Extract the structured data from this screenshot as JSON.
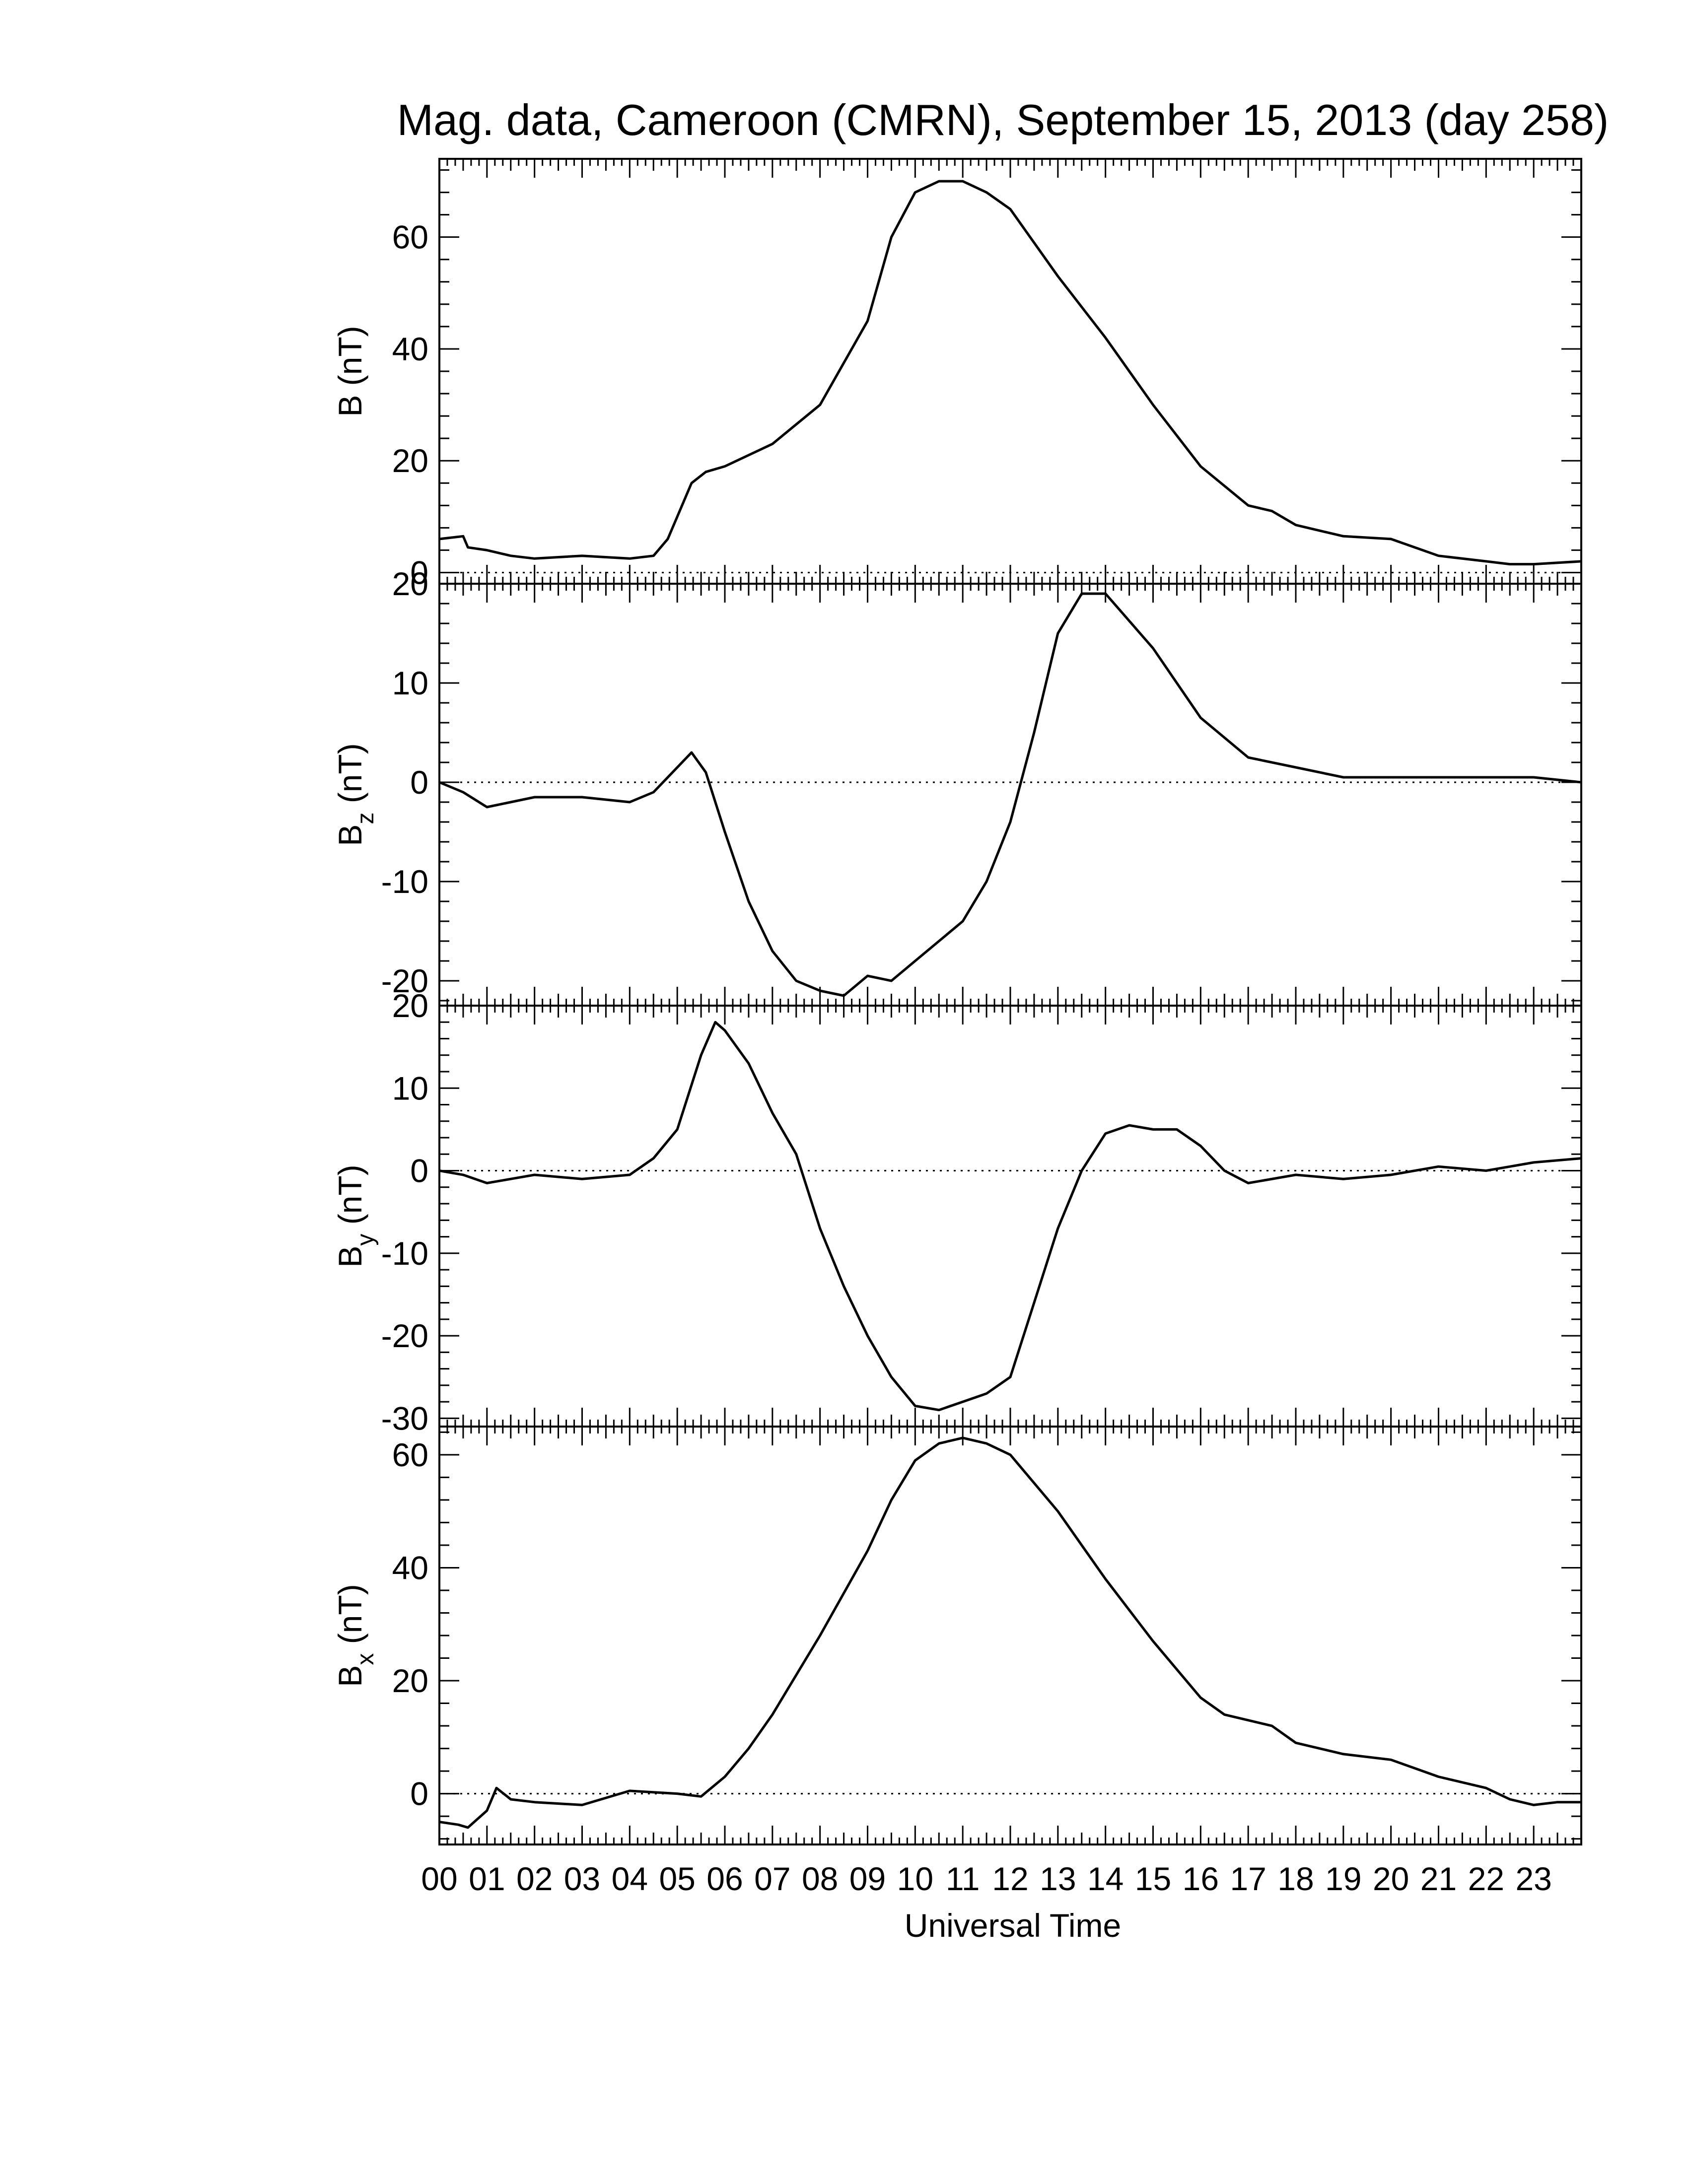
{
  "title": "Mag. data, Cameroon (CMRN), September 15, 2013 (day 258)",
  "x_axis": {
    "label": "Universal Time",
    "range": [
      0,
      24
    ],
    "tick_labels": [
      "00",
      "01",
      "02",
      "03",
      "04",
      "05",
      "06",
      "07",
      "08",
      "09",
      "10",
      "11",
      "12",
      "13",
      "14",
      "15",
      "16",
      "17",
      "18",
      "19",
      "20",
      "21",
      "22",
      "23"
    ]
  },
  "colors": {
    "line": "#000000",
    "axes": "#000000",
    "zero_line": "#000000"
  },
  "chart_data": [
    {
      "type": "line",
      "panel": "B",
      "ylabel": "B (nT)",
      "ylabel_main": "B (nT)",
      "ylabel_sub": "",
      "ylim": [
        -2,
        74
      ],
      "yticks": [
        0,
        20,
        40,
        60
      ],
      "zero_line": true,
      "x": [
        0,
        0.5,
        0.6,
        1.0,
        1.5,
        2,
        3,
        4,
        4.5,
        4.8,
        5,
        5.3,
        5.6,
        6,
        7,
        8,
        9,
        9.5,
        10,
        10.5,
        11,
        11.5,
        12,
        13,
        14,
        15,
        16,
        17,
        17.5,
        18,
        19,
        20,
        21,
        22,
        22.5,
        23,
        24
      ],
      "values": [
        6,
        6.5,
        4.5,
        4,
        3,
        2.5,
        3,
        2.5,
        3,
        6,
        10,
        16,
        18,
        19,
        23,
        30,
        45,
        60,
        68,
        70,
        70,
        68,
        65,
        53,
        42,
        30,
        19,
        12,
        11,
        8.5,
        6.5,
        6,
        3,
        2,
        1.5,
        1.5,
        2
      ]
    },
    {
      "type": "line",
      "panel": "Bz",
      "ylabel": "Bz (nT)",
      "ylabel_main": "B",
      "ylabel_sub": "z",
      "ylabel_units": "(nT)",
      "ylim": [
        -22.5,
        20
      ],
      "yticks": [
        -20,
        -10,
        0,
        10,
        20
      ],
      "zero_line": true,
      "x": [
        0,
        0.5,
        1,
        1.5,
        2,
        3,
        4,
        4.5,
        5,
        5.3,
        5.6,
        6,
        6.5,
        7,
        7.5,
        8,
        8.5,
        9,
        9.5,
        10,
        10.5,
        11,
        11.5,
        12,
        12.5,
        13,
        13.5,
        14,
        15,
        16,
        17,
        18,
        19,
        20,
        21,
        22,
        23,
        24
      ],
      "values": [
        0,
        -1,
        -2.5,
        -2,
        -1.5,
        -1.5,
        -2,
        -1,
        1.5,
        3,
        1,
        -5,
        -12,
        -17,
        -20,
        -21,
        -21.5,
        -19.5,
        -20,
        -18,
        -16,
        -14,
        -10,
        -4,
        5,
        15,
        19,
        19,
        13.5,
        6.5,
        2.5,
        1.5,
        0.5,
        0.5,
        0.5,
        0.5,
        0.5,
        0
      ]
    },
    {
      "type": "line",
      "panel": "By",
      "ylabel": "By (nT)",
      "ylabel_main": "B",
      "ylabel_sub": "y",
      "ylabel_units": "(nT)",
      "ylim": [
        -31,
        20
      ],
      "yticks": [
        -30,
        -20,
        -10,
        0,
        10,
        20
      ],
      "zero_line": true,
      "x": [
        0,
        0.5,
        1,
        1.5,
        2,
        3,
        4,
        4.5,
        5,
        5.5,
        5.8,
        6,
        6.5,
        7,
        7.5,
        8,
        8.5,
        9,
        9.5,
        10,
        10.5,
        11,
        11.5,
        12,
        12.5,
        13,
        13.5,
        14,
        14.5,
        15,
        15.5,
        16,
        16.5,
        17,
        18,
        19,
        20,
        21,
        22,
        23,
        24
      ],
      "values": [
        0,
        -0.5,
        -1.5,
        -1,
        -0.5,
        -1,
        -0.5,
        1.5,
        5,
        14,
        18,
        17,
        13,
        7,
        2,
        -7,
        -14,
        -20,
        -25,
        -28.5,
        -29,
        -28,
        -27,
        -25,
        -16,
        -7,
        0,
        4.5,
        5.5,
        5,
        5,
        3,
        0,
        -1.5,
        -0.5,
        -1,
        -0.5,
        0.5,
        0,
        1,
        1.5
      ]
    },
    {
      "type": "line",
      "panel": "Bx",
      "ylabel": "Bx (nT)",
      "ylabel_main": "B",
      "ylabel_sub": "x",
      "ylabel_units": "(nT)",
      "ylim": [
        -9,
        65
      ],
      "yticks": [
        0,
        20,
        40,
        60
      ],
      "zero_line": true,
      "x": [
        0,
        0.4,
        0.6,
        1.0,
        1.2,
        1.5,
        2,
        3,
        4,
        5,
        5.5,
        6,
        6.5,
        7,
        8,
        9,
        9.5,
        10,
        10.5,
        11,
        11.5,
        12,
        13,
        14,
        15,
        16,
        16.5,
        17,
        17.5,
        18,
        19,
        20,
        21,
        22,
        22.5,
        23,
        23.5,
        24
      ],
      "values": [
        -5,
        -5.5,
        -6,
        -3,
        1,
        -1,
        -1.5,
        -2,
        0.5,
        0,
        -0.5,
        3,
        8,
        14,
        28,
        43,
        52,
        59,
        62,
        63,
        62,
        60,
        50,
        38,
        27,
        17,
        14,
        13,
        12,
        9,
        7,
        6,
        3,
        1,
        -1,
        -2,
        -1.5,
        -1.5
      ]
    }
  ]
}
